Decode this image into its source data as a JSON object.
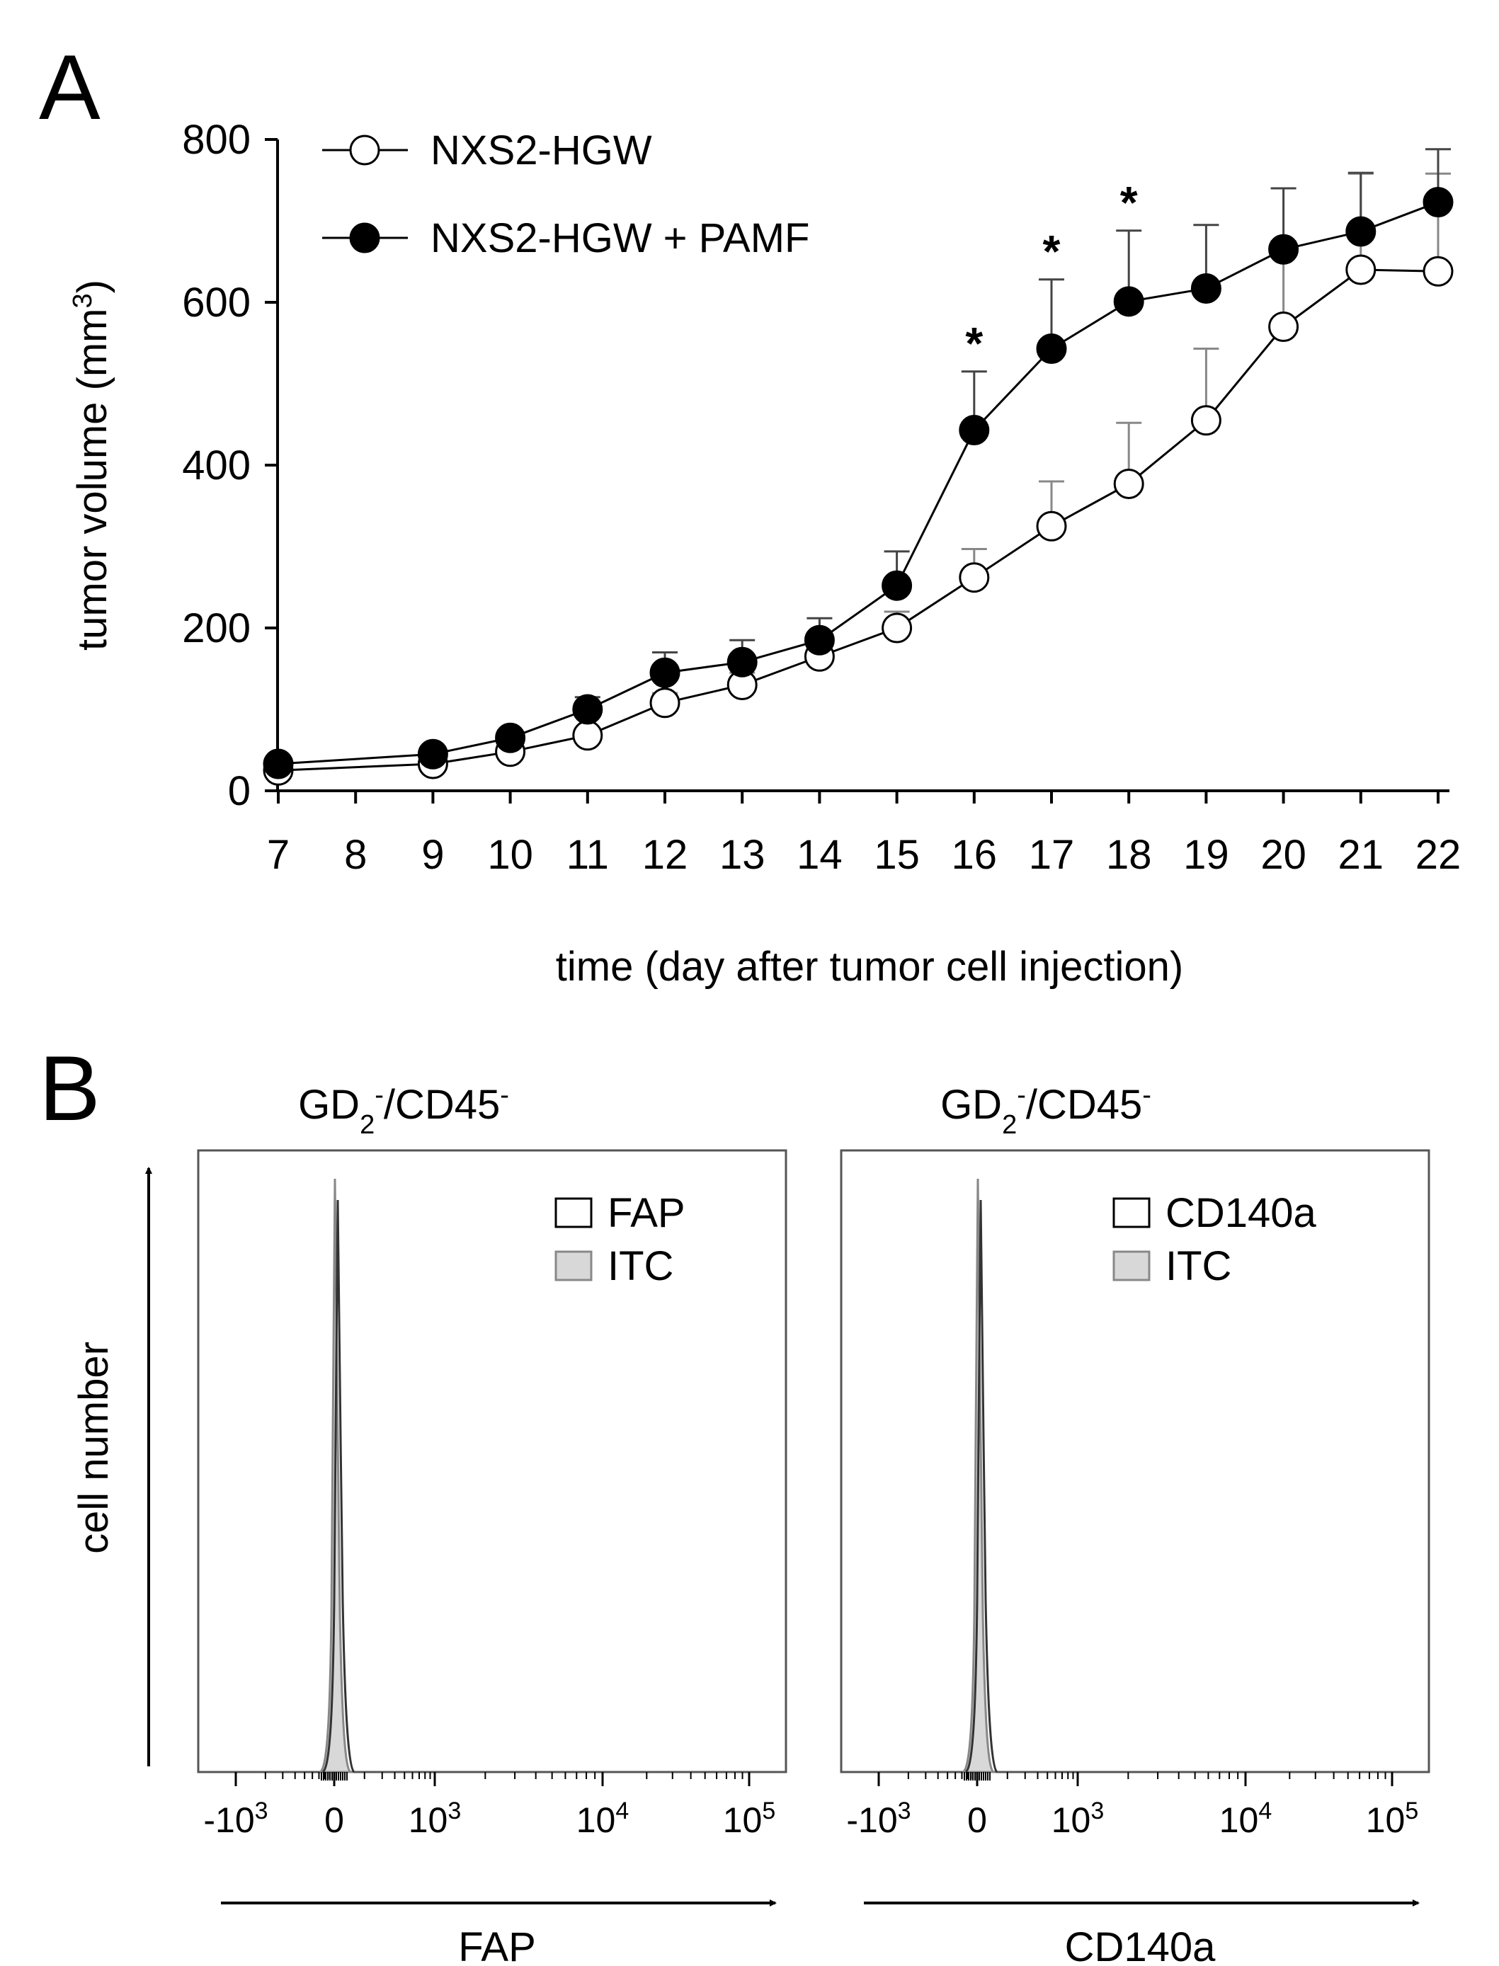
{
  "panels": {
    "a": {
      "letter": "A"
    },
    "b": {
      "letter": "B"
    }
  },
  "chart_data": [
    {
      "type": "line",
      "panel": "A",
      "title": "",
      "xlabel": "time (day after tumor cell injection)",
      "ylabel_main": "tumor volume (mm",
      "ylabel_sup": "3",
      "ylabel_end": ")",
      "ylim": [
        0,
        800
      ],
      "yticks": [
        0,
        200,
        400,
        600,
        800
      ],
      "x_categories": [
        "7",
        "8",
        "9",
        "10",
        "11",
        "12",
        "13",
        "14",
        "15",
        "16",
        "17",
        "18",
        "19",
        "20",
        "21",
        "22"
      ],
      "series": [
        {
          "name": "NXS2-HGW",
          "marker": "open-circle",
          "x": [
            7,
            9,
            10,
            11,
            12,
            13,
            14,
            15,
            16,
            17,
            18,
            19,
            20,
            21,
            22
          ],
          "values": [
            25,
            33,
            48,
            68,
            108,
            130,
            165,
            200,
            262,
            325,
            377,
            455,
            570,
            640,
            638
          ],
          "error": [
            3,
            4,
            6,
            8,
            12,
            15,
            18,
            20,
            35,
            55,
            75,
            88,
            105,
            118,
            120
          ]
        },
        {
          "name": "NXS2-HGW + PAMF",
          "marker": "filled-circle",
          "x": [
            7,
            9,
            10,
            11,
            12,
            13,
            14,
            15,
            16,
            17,
            18,
            19,
            20,
            21,
            22
          ],
          "values": [
            33,
            45,
            65,
            100,
            145,
            158,
            185,
            252,
            443,
            543,
            601,
            617,
            665,
            687,
            723
          ],
          "error": [
            4,
            5,
            8,
            15,
            25,
            27,
            27,
            42,
            72,
            85,
            87,
            78,
            75,
            72,
            65
          ]
        }
      ],
      "significance": [
        {
          "x": 16,
          "label": "*"
        },
        {
          "x": 17,
          "label": "*"
        },
        {
          "x": 18,
          "label": "*"
        }
      ]
    },
    {
      "type": "histogram",
      "panel": "B",
      "title_main": "GD",
      "title_sub": "2",
      "title_sup1": "-",
      "title_mid": "/CD45",
      "title_sup2": "-",
      "xlabel": "FAP",
      "ylabel": "cell number",
      "x_ticks": [
        {
          "base": "-10",
          "exp": "3"
        },
        {
          "base": "0",
          "exp": ""
        },
        {
          "base": "10",
          "exp": "3"
        },
        {
          "base": "10",
          "exp": "4"
        },
        {
          "base": "10",
          "exp": "5"
        }
      ],
      "legend": [
        {
          "label": "FAP",
          "color": "#ffffff"
        },
        {
          "label": "ITC",
          "color": "#d8d8d8"
        }
      ]
    },
    {
      "type": "histogram",
      "panel": "B",
      "title_main": "GD",
      "title_sub": "2",
      "title_sup1": "-",
      "title_mid": "/CD45",
      "title_sup2": "-",
      "xlabel": "CD140a",
      "x_ticks": [
        {
          "base": "-10",
          "exp": "3"
        },
        {
          "base": "0",
          "exp": ""
        },
        {
          "base": "10",
          "exp": "3"
        },
        {
          "base": "10",
          "exp": "4"
        },
        {
          "base": "10",
          "exp": "5"
        }
      ],
      "legend": [
        {
          "label": "CD140a",
          "color": "#ffffff"
        },
        {
          "label": "ITC",
          "color": "#d8d8d8"
        }
      ]
    }
  ]
}
